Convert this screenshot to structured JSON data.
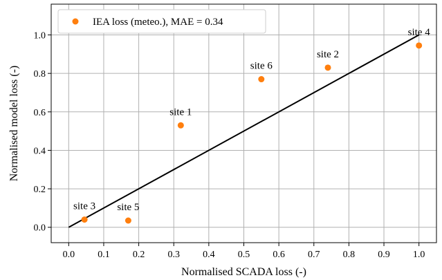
{
  "chart_data": {
    "type": "scatter",
    "title": "",
    "xlabel": "Normalised SCADA loss (-)",
    "ylabel": "Normalised model loss (-)",
    "xlim": [
      -0.05,
      1.05
    ],
    "ylim": [
      -0.08,
      1.16
    ],
    "xticks": [
      0.0,
      0.1,
      0.2,
      0.3,
      0.4,
      0.5,
      0.6,
      0.7,
      0.8,
      0.9,
      1.0
    ],
    "xtick_labels": [
      "0.0",
      "0.1",
      "0.2",
      "0.3",
      "0.4",
      "0.5",
      "0.6",
      "0.7",
      "0.8",
      "0.9",
      "1.0"
    ],
    "yticks": [
      0.0,
      0.2,
      0.4,
      0.6,
      0.8,
      1.0
    ],
    "ytick_labels": [
      "0.0",
      "0.2",
      "0.4",
      "0.6",
      "0.8",
      "1.0"
    ],
    "grid": true,
    "legend_position": "top-left",
    "series": [
      {
        "name": "IEA loss (meteo.), MAE = 0.34",
        "color": "#ff7f0e",
        "points": [
          {
            "label": "site 1",
            "x": 0.32,
            "y": 0.53
          },
          {
            "label": "site 2",
            "x": 0.74,
            "y": 0.83
          },
          {
            "label": "site 3",
            "x": 0.045,
            "y": 0.04
          },
          {
            "label": "site 4",
            "x": 1.0,
            "y": 0.945
          },
          {
            "label": "site 5",
            "x": 0.17,
            "y": 0.035
          },
          {
            "label": "site 6",
            "x": 0.55,
            "y": 0.77
          }
        ]
      }
    ],
    "reference_line": {
      "x": [
        0,
        1
      ],
      "y": [
        0,
        1
      ],
      "color": "#000000"
    }
  }
}
